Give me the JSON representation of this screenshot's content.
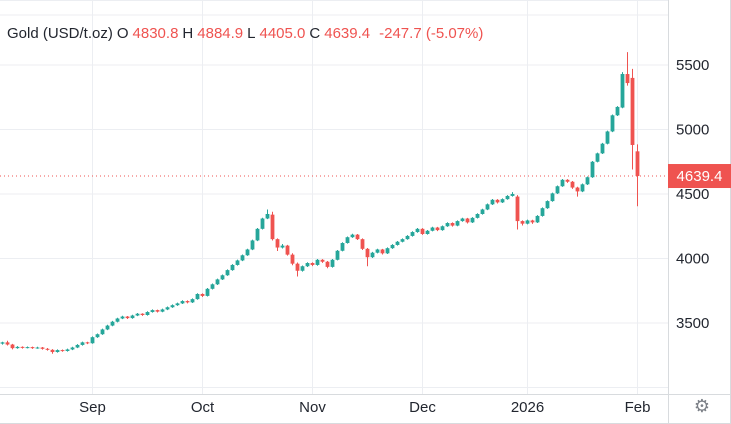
{
  "header": {
    "symbol": "Gold (USD/t.oz)",
    "open_label": "O",
    "open": "4830.8",
    "high_label": "H",
    "high": "4884.9",
    "low_label": "L",
    "low": "4405.0",
    "close_label": "C",
    "close": "4639.4",
    "change": "-247.7 (-5.07%)"
  },
  "price_label": "4639.4",
  "icons": {
    "settings": "⚙"
  },
  "colors": {
    "up": "#26a69a",
    "down": "#ef5350",
    "grid": "#eceef2",
    "axis_line": "#d8dbde",
    "text": "#22262f",
    "muted": "#7c8087",
    "badge_text": "#ffffff",
    "background": "#ffffff"
  },
  "y_axis": {
    "labels": [
      "3500",
      "4000",
      "4500",
      "5000",
      "5500"
    ]
  },
  "x_axis": {
    "labels": [
      "Sep",
      "Oct",
      "Nov",
      "Dec",
      "2026",
      "Feb"
    ]
  },
  "chart_data": {
    "type": "candlestick",
    "title": "Gold (USD/t.oz)",
    "unit": "USD/t.oz",
    "ohlc_last": {
      "open": 4830.8,
      "high": 4884.9,
      "low": 4405.0,
      "close": 4639.4,
      "change": -247.7,
      "change_pct": -5.07
    },
    "price_line": 4639.4,
    "ylim": [
      2950,
      6005
    ],
    "grid": true,
    "legend_position": "top-left",
    "y_ticks": [
      3500,
      4000,
      4500,
      5000,
      5500
    ],
    "x_ticks": [
      {
        "label": "Sep",
        "candle_index": 18
      },
      {
        "label": "Oct",
        "candle_index": 40
      },
      {
        "label": "Nov",
        "candle_index": 62
      },
      {
        "label": "Dec",
        "candle_index": 84
      },
      {
        "label": "2026",
        "candle_index": 105
      },
      {
        "label": "Feb",
        "candle_index": 127
      }
    ],
    "candles": [
      [
        3340,
        3355,
        3332,
        3350
      ],
      [
        3350,
        3362,
        3326,
        3333
      ],
      [
        3333,
        3338,
        3296,
        3305
      ],
      [
        3305,
        3321,
        3300,
        3315
      ],
      [
        3315,
        3319,
        3301,
        3308
      ],
      [
        3308,
        3318,
        3303,
        3313
      ],
      [
        3313,
        3317,
        3299,
        3305
      ],
      [
        3305,
        3316,
        3300,
        3310
      ],
      [
        3310,
        3314,
        3294,
        3300
      ],
      [
        3300,
        3306,
        3286,
        3292
      ],
      [
        3292,
        3297,
        3262,
        3275
      ],
      [
        3275,
        3296,
        3270,
        3290
      ],
      [
        3290,
        3295,
        3277,
        3283
      ],
      [
        3283,
        3301,
        3278,
        3295
      ],
      [
        3295,
        3316,
        3290,
        3310
      ],
      [
        3310,
        3336,
        3305,
        3330
      ],
      [
        3330,
        3356,
        3325,
        3350
      ],
      [
        3350,
        3355,
        3336,
        3343
      ],
      [
        3343,
        3396,
        3339,
        3390
      ],
      [
        3390,
        3419,
        3385,
        3413
      ],
      [
        3413,
        3456,
        3408,
        3450
      ],
      [
        3450,
        3486,
        3445,
        3480
      ],
      [
        3480,
        3516,
        3475,
        3510
      ],
      [
        3510,
        3541,
        3505,
        3535
      ],
      [
        3535,
        3556,
        3530,
        3550
      ],
      [
        3550,
        3554,
        3531,
        3538
      ],
      [
        3538,
        3564,
        3533,
        3558
      ],
      [
        3558,
        3578,
        3553,
        3572
      ],
      [
        3572,
        3576,
        3555,
        3562
      ],
      [
        3562,
        3591,
        3557,
        3585
      ],
      [
        3585,
        3606,
        3580,
        3600
      ],
      [
        3600,
        3604,
        3581,
        3588
      ],
      [
        3588,
        3611,
        3583,
        3605
      ],
      [
        3605,
        3628,
        3600,
        3622
      ],
      [
        3622,
        3644,
        3617,
        3638
      ],
      [
        3638,
        3658,
        3633,
        3652
      ],
      [
        3652,
        3676,
        3647,
        3670
      ],
      [
        3670,
        3675,
        3652,
        3660
      ],
      [
        3660,
        3691,
        3655,
        3685
      ],
      [
        3685,
        3731,
        3680,
        3725
      ],
      [
        3725,
        3730,
        3702,
        3710
      ],
      [
        3710,
        3771,
        3705,
        3765
      ],
      [
        3765,
        3806,
        3760,
        3800
      ],
      [
        3800,
        3844,
        3795,
        3838
      ],
      [
        3838,
        3876,
        3833,
        3870
      ],
      [
        3870,
        3916,
        3865,
        3910
      ],
      [
        3910,
        3956,
        3905,
        3950
      ],
      [
        3950,
        3991,
        3945,
        3985
      ],
      [
        3985,
        4031,
        3980,
        4025
      ],
      [
        4025,
        4076,
        4020,
        4070
      ],
      [
        4070,
        4146,
        4065,
        4140
      ],
      [
        4140,
        4236,
        4135,
        4230
      ],
      [
        4230,
        4316,
        4225,
        4310
      ],
      [
        4310,
        4380,
        4305,
        4345
      ],
      [
        4340,
        4362,
        4140,
        4150
      ],
      [
        4150,
        4156,
        4058,
        4085
      ],
      [
        4085,
        4112,
        4078,
        4100
      ],
      [
        4100,
        4106,
        4022,
        4030
      ],
      [
        4030,
        4041,
        3948,
        3960
      ],
      [
        3960,
        3969,
        3860,
        3905
      ],
      [
        3905,
        3946,
        3898,
        3940
      ],
      [
        3940,
        3971,
        3934,
        3965
      ],
      [
        3965,
        3970,
        3941,
        3950
      ],
      [
        3950,
        3996,
        3944,
        3990
      ],
      [
        3990,
        3995,
        3966,
        3975
      ],
      [
        3975,
        3981,
        3924,
        3935
      ],
      [
        3935,
        3996,
        3929,
        3990
      ],
      [
        3990,
        4066,
        3985,
        4060
      ],
      [
        4060,
        4126,
        4055,
        4120
      ],
      [
        4120,
        4171,
        4115,
        4165
      ],
      [
        4165,
        4192,
        4160,
        4185
      ],
      [
        4185,
        4190,
        4143,
        4150
      ],
      [
        4150,
        4156,
        4066,
        4075
      ],
      [
        4075,
        4081,
        3940,
        4010
      ],
      [
        4010,
        4051,
        4004,
        4045
      ],
      [
        4045,
        4076,
        4040,
        4070
      ],
      [
        4070,
        4075,
        4031,
        4040
      ],
      [
        4040,
        4086,
        4035,
        4080
      ],
      [
        4080,
        4111,
        4075,
        4105
      ],
      [
        4105,
        4136,
        4100,
        4130
      ],
      [
        4130,
        4156,
        4125,
        4150
      ],
      [
        4150,
        4181,
        4145,
        4175
      ],
      [
        4175,
        4211,
        4170,
        4205
      ],
      [
        4205,
        4236,
        4200,
        4230
      ],
      [
        4230,
        4235,
        4183,
        4190
      ],
      [
        4190,
        4221,
        4185,
        4215
      ],
      [
        4215,
        4246,
        4210,
        4240
      ],
      [
        4240,
        4245,
        4212,
        4220
      ],
      [
        4220,
        4256,
        4215,
        4250
      ],
      [
        4250,
        4281,
        4245,
        4275
      ],
      [
        4275,
        4280,
        4247,
        4255
      ],
      [
        4255,
        4296,
        4250,
        4290
      ],
      [
        4290,
        4316,
        4285,
        4310
      ],
      [
        4310,
        4315,
        4271,
        4280
      ],
      [
        4280,
        4321,
        4275,
        4315
      ],
      [
        4315,
        4351,
        4310,
        4345
      ],
      [
        4345,
        4386,
        4340,
        4380
      ],
      [
        4380,
        4426,
        4375,
        4420
      ],
      [
        4420,
        4461,
        4415,
        4455
      ],
      [
        4455,
        4460,
        4426,
        4435
      ],
      [
        4435,
        4466,
        4430,
        4460
      ],
      [
        4460,
        4491,
        4455,
        4485
      ],
      [
        4485,
        4515,
        4480,
        4500
      ],
      [
        4480,
        4491,
        4225,
        4290
      ],
      [
        4290,
        4296,
        4256,
        4270
      ],
      [
        4270,
        4301,
        4265,
        4295
      ],
      [
        4295,
        4300,
        4268,
        4280
      ],
      [
        4280,
        4336,
        4275,
        4330
      ],
      [
        4330,
        4396,
        4325,
        4390
      ],
      [
        4390,
        4451,
        4385,
        4445
      ],
      [
        4445,
        4511,
        4440,
        4505
      ],
      [
        4505,
        4566,
        4500,
        4560
      ],
      [
        4560,
        4616,
        4555,
        4610
      ],
      [
        4610,
        4615,
        4586,
        4595
      ],
      [
        4595,
        4601,
        4540,
        4550
      ],
      [
        4550,
        4556,
        4480,
        4520
      ],
      [
        4520,
        4581,
        4515,
        4575
      ],
      [
        4575,
        4636,
        4570,
        4630
      ],
      [
        4630,
        4756,
        4625,
        4750
      ],
      [
        4750,
        4821,
        4745,
        4815
      ],
      [
        4815,
        4896,
        4810,
        4890
      ],
      [
        4890,
        4991,
        4885,
        4985
      ],
      [
        4985,
        5116,
        4980,
        5110
      ],
      [
        5110,
        5181,
        5105,
        5175
      ],
      [
        5170,
        5445,
        5165,
        5430
      ],
      [
        5430,
        5600,
        5340,
        5360
      ],
      [
        5400,
        5470,
        4690,
        4880
      ],
      [
        4830.8,
        4884.9,
        4405.0,
        4639.4
      ]
    ]
  }
}
